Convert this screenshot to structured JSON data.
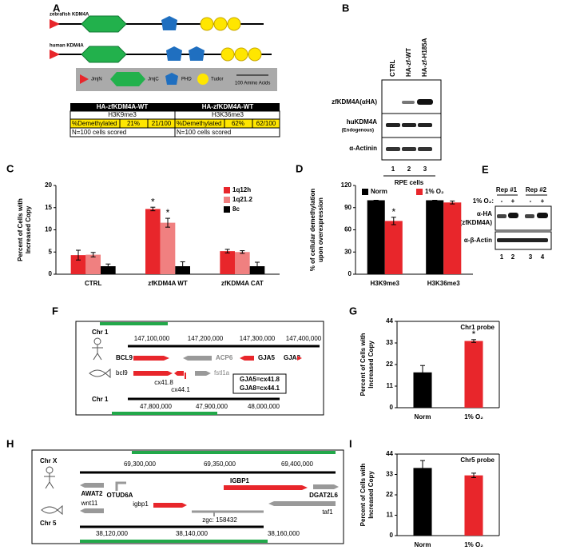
{
  "chart_data": [
    {
      "type": "bar",
      "panel": "C",
      "ylabel": [
        "Percent of Cells with",
        "Increased Copy"
      ],
      "categories": [
        "CTRL",
        "zfKDM4A WT",
        "zfKDM4A CAT"
      ],
      "series": [
        {
          "name": "1q12h",
          "color": "#e8262b",
          "values": [
            4.3,
            14.7,
            5.2
          ],
          "errors": [
            1.1,
            0.4,
            0.4
          ]
        },
        {
          "name": "1q21.2",
          "color": "#f08080",
          "values": [
            4.4,
            11.6,
            5.0
          ],
          "errors": [
            0.5,
            1.0,
            0.3
          ]
        },
        {
          "name": "8c",
          "color": "#000000",
          "values": [
            1.8,
            1.8,
            1.8
          ],
          "errors": [
            0.5,
            1.0,
            0.9
          ]
        }
      ],
      "ylim": [
        0,
        20
      ],
      "yticks": [
        0,
        5,
        10,
        15,
        20
      ],
      "legend": "upper right",
      "annotations": [
        {
          "text": "*",
          "category": 1,
          "series": 0
        },
        {
          "text": "*",
          "category": 1,
          "series": 1
        }
      ]
    },
    {
      "type": "bar",
      "panel": "D",
      "ylabel": [
        "% of cellular demethylation",
        "upon overexpression"
      ],
      "categories": [
        "H3K9me3",
        "H3K36me3"
      ],
      "series": [
        {
          "name": "Norm",
          "color": "#000000",
          "values": [
            100,
            100
          ],
          "errors": [
            0,
            0
          ]
        },
        {
          "name": "1% O₂",
          "color": "#e8262b",
          "values": [
            72,
            97
          ],
          "errors": [
            5,
            2
          ]
        }
      ],
      "ylim": [
        0,
        120
      ],
      "yticks": [
        0,
        30,
        60,
        90,
        120
      ],
      "legend": "top",
      "annotations": [
        {
          "text": "*",
          "category": 0,
          "series": 1
        }
      ]
    },
    {
      "type": "bar",
      "panel": "G",
      "title": "Chr1 probe",
      "ylabel": [
        "Percent of Cells with",
        "Increased Copy"
      ],
      "categories": [
        "Norm",
        "1% O₂"
      ],
      "values": [
        18,
        34
      ],
      "errors": [
        3.5,
        0.7
      ],
      "colors": [
        "#000000",
        "#e8262b"
      ],
      "ylim": [
        0,
        44
      ],
      "yticks": [
        0,
        11,
        22,
        33,
        44
      ],
      "annotations": [
        {
          "text": "*",
          "category": 1
        }
      ]
    },
    {
      "type": "bar",
      "panel": "I",
      "title": "Chr5 probe",
      "ylabel": [
        "Percent of Cells with",
        "Increased Copy"
      ],
      "categories": [
        "Norm",
        "1% O₂"
      ],
      "values": [
        36.5,
        32.5
      ],
      "errors": [
        4,
        1.2
      ],
      "colors": [
        "#000000",
        "#e8262b"
      ],
      "ylim": [
        0,
        44
      ],
      "yticks": [
        0,
        11,
        22,
        33,
        44
      ]
    }
  ],
  "panels": {
    "A": {
      "label": "A",
      "zebrafish": "zebrafish KDM4A",
      "human": "human KDM4A",
      "legend": [
        "JmjN",
        "JmjC",
        "PHD",
        "Tudor",
        "100 Amino Acids"
      ],
      "table": [
        {
          "header": "HA-zfKDM4A-WT",
          "mark": "H3K9me3",
          "cells": [
            "%Demethylated",
            "21%",
            "21/100"
          ],
          "note": "N=100 cells scored"
        },
        {
          "header": "HA-zfKDM4A-WT",
          "mark": "H3K36me3",
          "cells": [
            "%Demethylated",
            "62%",
            "62/100"
          ],
          "note": "N=100 cells scored"
        }
      ]
    },
    "B": {
      "label": "B",
      "lanes": [
        "CTRL",
        "HA-zf-WT",
        "HA-zf-H185A"
      ],
      "rows": [
        "zfKDM4A(αHA)",
        "huKDM4A",
        "(Endogenous)",
        "α-Actinin"
      ],
      "lane_numbers": [
        "1",
        "2",
        "3"
      ],
      "footer": "RPE cells"
    },
    "E": {
      "label": "E",
      "reps": [
        "Rep #1",
        "Rep #2"
      ],
      "condition": "1% O₂:",
      "signs": [
        "-",
        "+",
        "-",
        "+"
      ],
      "rows": [
        "α-HA",
        "(zfKDM4A)",
        "α-β-Actin"
      ],
      "lane_numbers": [
        "1",
        "2",
        "3",
        "4"
      ]
    },
    "F": {
      "label": "F",
      "top_chr": "Chr 1",
      "top_ticks": [
        "147,100,000",
        "147,200,000",
        "147,300,000",
        "147,400,000"
      ],
      "top_genes": [
        "BCL9",
        "ACP6",
        "GJA5",
        "GJA8"
      ],
      "bottom_genes": [
        "bcl9",
        "cx41.8",
        "cx44.1",
        "fstl1a"
      ],
      "bottom_chr": "Chr 1",
      "bottom_ticks": [
        "47,800,000",
        "47,900,000",
        "48,000,000"
      ],
      "key": [
        "GJA5=cx41.8",
        "GJA8=cx44.1"
      ]
    },
    "H": {
      "label": "H",
      "top_chr": "Chr X",
      "top_ticks": [
        "69,300,000",
        "69,350,000",
        "69,400,000"
      ],
      "top_genes": [
        "AWAT2",
        "OTUD6A",
        "IGBP1",
        "DGAT2L6"
      ],
      "bottom_genes": [
        "wnt11",
        "igbp1",
        "zgc: 158432",
        "taf1"
      ],
      "bottom_chr": "Chr 5",
      "bottom_ticks": [
        "38,120,000",
        "38,140,000",
        "38,160,000"
      ]
    }
  }
}
